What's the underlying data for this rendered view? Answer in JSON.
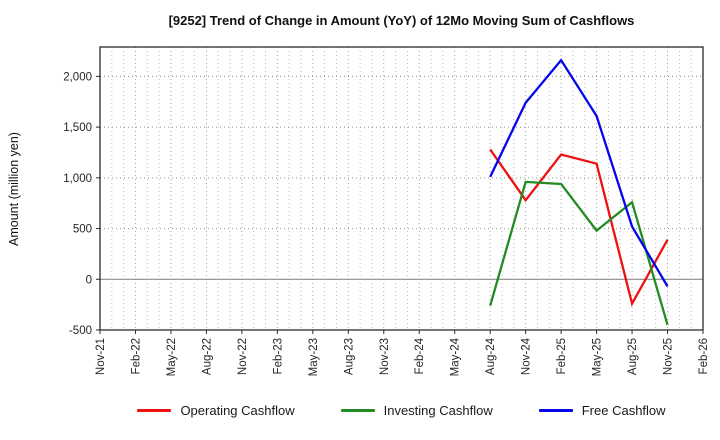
{
  "window": {
    "title": "[9252]  Trend of Change in Amount (YoY) of 12Mo Moving Sum of Cashflows"
  },
  "chart_data": {
    "type": "line",
    "title": "[9252]  Trend of Change in Amount (YoY) of 12Mo Moving Sum of Cashflows",
    "xlabel": "",
    "ylabel": "Amount (million yen)",
    "ylim": [
      -500,
      2290
    ],
    "yticks": [
      -500,
      0,
      500,
      1000,
      1500,
      2000
    ],
    "grid": true,
    "legend_position": "bottom",
    "x_axis": {
      "tick_labels": [
        "Nov-21",
        "Feb-22",
        "May-22",
        "Aug-22",
        "Nov-22",
        "Feb-23",
        "May-23",
        "Aug-23",
        "Nov-23",
        "Feb-24",
        "May-24",
        "Aug-24",
        "Nov-24",
        "Feb-25",
        "May-25",
        "Aug-25",
        "Nov-25",
        "Feb-26"
      ],
      "months_per_tick": 3
    },
    "data_x": [
      "Aug-24",
      "Nov-24",
      "Feb-25",
      "May-25",
      "Aug-25",
      "Nov-25"
    ],
    "series": [
      {
        "name": "Operating Cashflow",
        "color": "#ee1111",
        "values": [
          1280,
          780,
          1230,
          1140,
          -240,
          390
        ]
      },
      {
        "name": "Investing Cashflow",
        "color": "#228b22",
        "values": [
          -260,
          960,
          940,
          480,
          760,
          -450
        ]
      },
      {
        "name": "Free Cashflow",
        "color": "#0505ee",
        "values": [
          1010,
          1740,
          2160,
          1610,
          520,
          -70
        ]
      }
    ],
    "style": {
      "axis_color": "#2b2b2b",
      "grid_h_color": "#8f8f8f",
      "grid_v_color": "#b5b5b5",
      "zero_line_color": "#8c8c8c",
      "tick_text_color": "#262626"
    }
  }
}
